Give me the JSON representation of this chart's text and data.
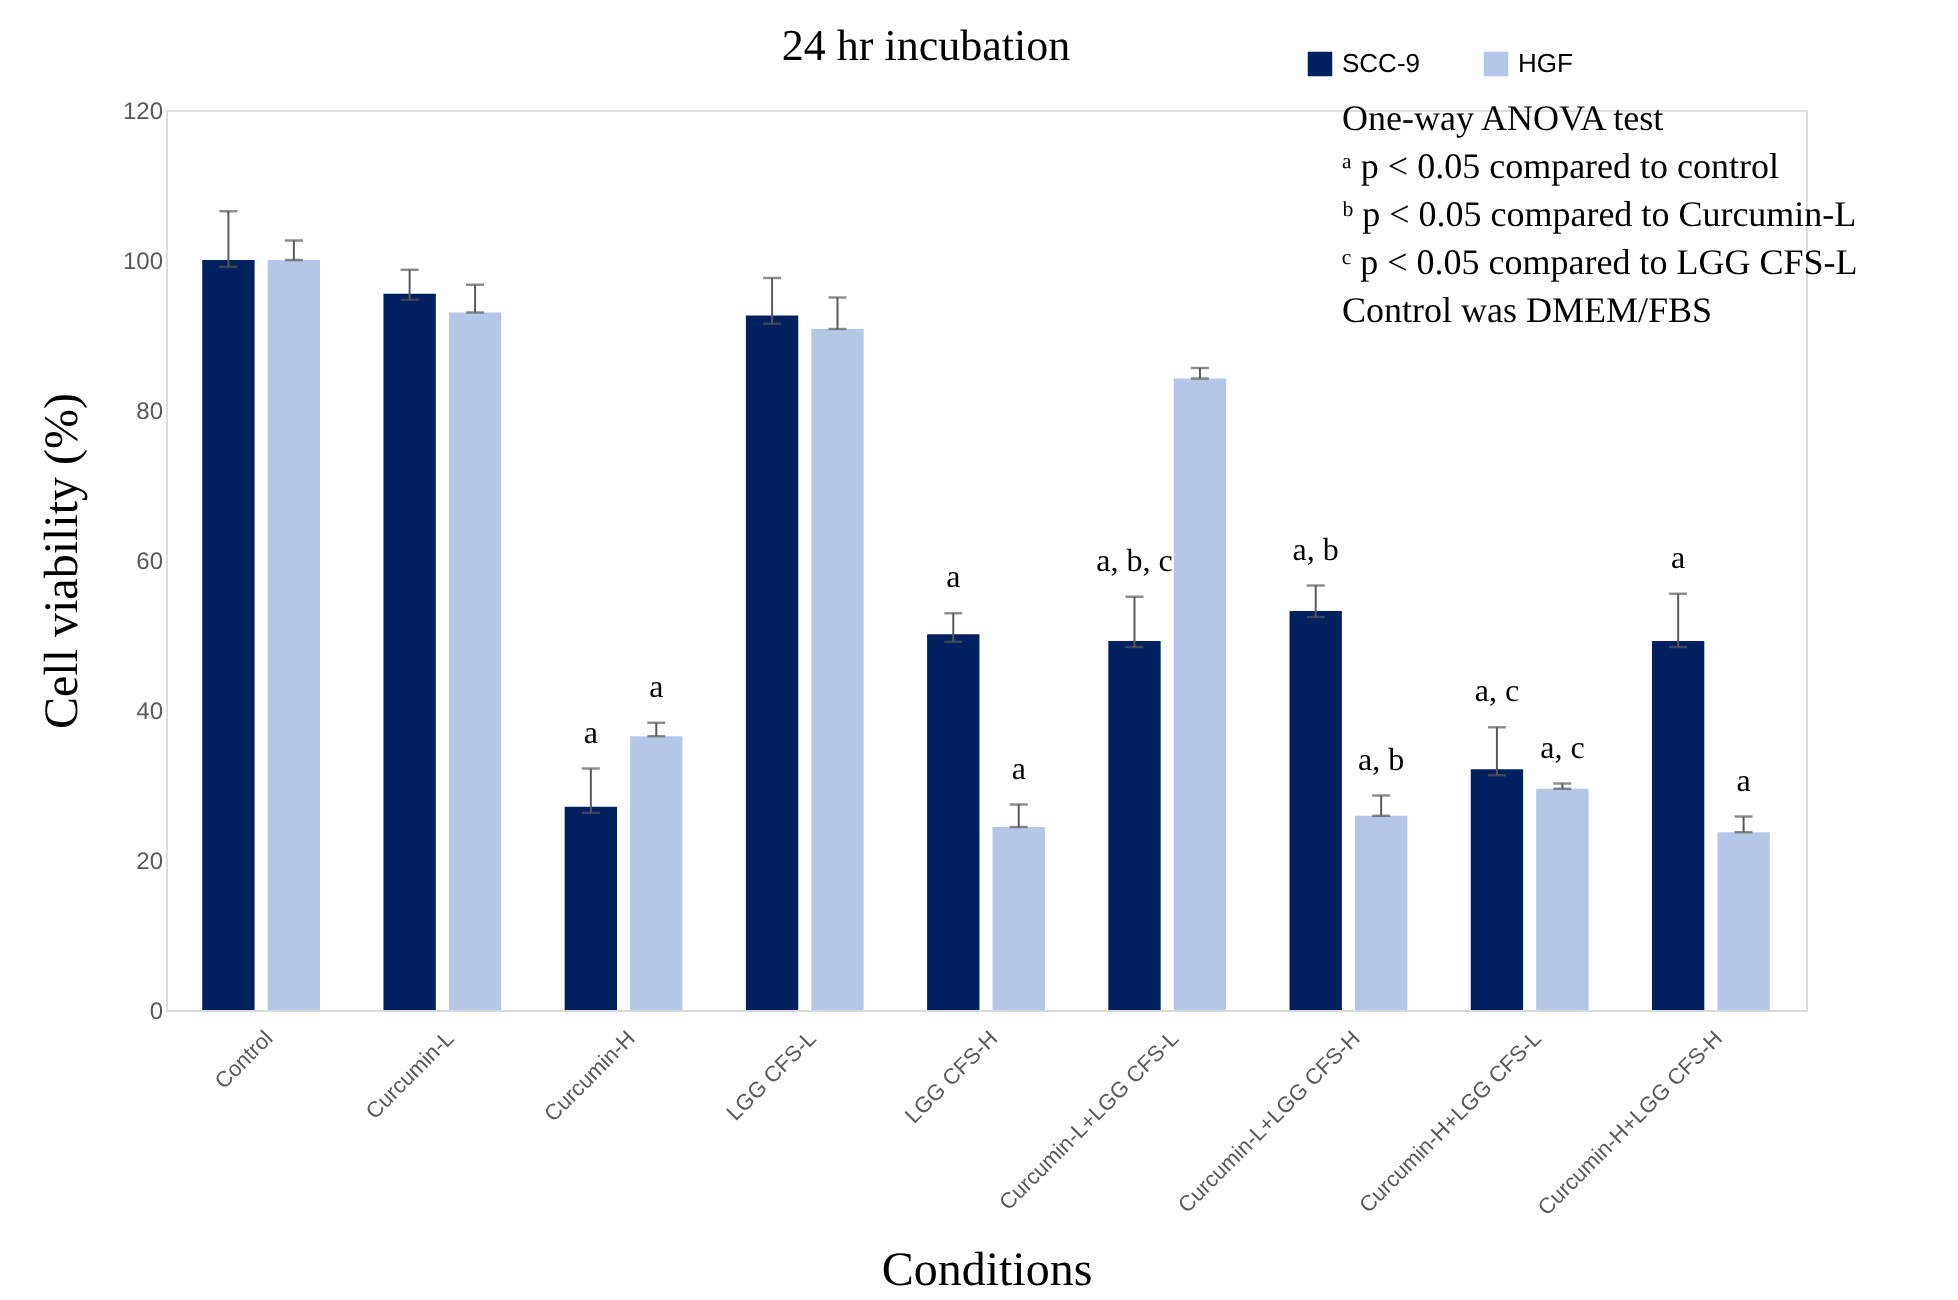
{
  "chart_data": {
    "type": "bar",
    "title": "24 hr incubation",
    "xlabel": "Conditions",
    "ylabel": "Cell viability (%)",
    "categories": [
      "Control",
      "Curcumin-L",
      "Curcumin-H",
      "LGG CFS-L",
      "LGG CFS-H",
      "Curcumin-L+LGG CFS-L",
      "Curcumin-L+LGG CFS-H",
      "Curcumin-H+LGG CFS-L",
      "Curcumin-H+LGG CFS-H"
    ],
    "series": [
      {
        "name": "SCC-9",
        "color": "#002060",
        "values": [
          100,
          95.5,
          27.1,
          92.6,
          50.1,
          49.2,
          53.2,
          32.1,
          49.2
        ],
        "errors": [
          [
            99.1,
            106.5
          ],
          [
            94.7,
            98.7
          ],
          [
            26.3,
            32.2
          ],
          [
            91.5,
            97.6
          ],
          [
            49.1,
            52.9
          ],
          [
            48.4,
            55.1
          ],
          [
            52.4,
            56.6
          ],
          [
            31.3,
            37.7
          ],
          [
            48.4,
            55.5
          ]
        ],
        "value_labels": [
          null,
          null,
          "a",
          null,
          "a",
          "a, b, c",
          "a, b",
          "a, c",
          "a"
        ]
      },
      {
        "name": "HGF",
        "color": "#b4c7e7",
        "values": [
          100,
          93.0,
          36.5,
          90.8,
          24.4,
          84.2,
          25.9,
          29.5,
          23.7
        ],
        "errors": [
          [
            100,
            102.6
          ],
          [
            93.0,
            96.7
          ],
          [
            36.5,
            38.3
          ],
          [
            90.8,
            95.0
          ],
          [
            24.4,
            27.4
          ],
          [
            84.2,
            85.6
          ],
          [
            25.9,
            28.6
          ],
          [
            29.5,
            30.2
          ],
          [
            23.7,
            25.8
          ]
        ],
        "value_labels": [
          null,
          null,
          "a",
          null,
          "a",
          null,
          "a, b",
          "a, c",
          "a"
        ]
      }
    ],
    "ylim": [
      0,
      120
    ],
    "yticks": [
      0,
      20,
      40,
      60,
      80,
      100,
      120
    ],
    "grid": false,
    "legend": "top right",
    "annotations": [
      "One-way ANOVA test",
      "ᵃ p < 0.05 compared to control",
      "ᵇ p < 0.05 compared to Curcumin-L",
      "ᶜ p < 0.05 compared to LGG CFS-L",
      "Control was DMEM/FBS"
    ]
  }
}
